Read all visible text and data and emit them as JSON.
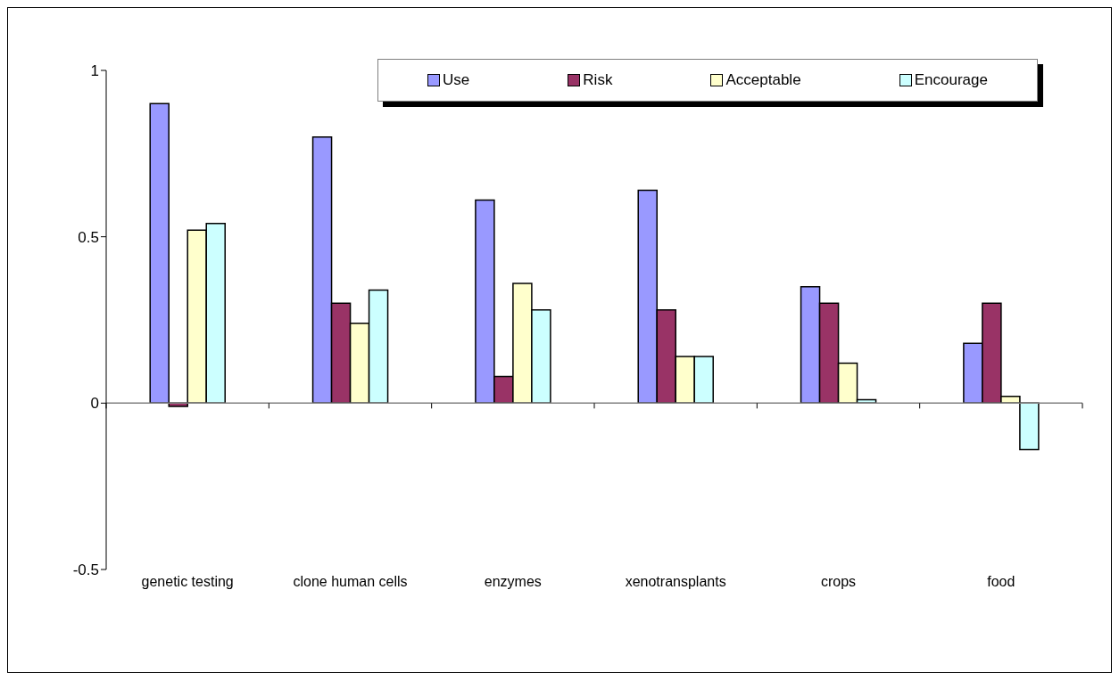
{
  "chart_data": {
    "type": "bar",
    "categories": [
      "genetic testing",
      "clone human cells",
      "enzymes",
      "xenotransplants",
      "crops",
      "food"
    ],
    "series": [
      {
        "name": "Use",
        "color": "#9999ff",
        "values": [
          0.9,
          0.8,
          0.61,
          0.64,
          0.35,
          0.18
        ]
      },
      {
        "name": "Risk",
        "color": "#993366",
        "values": [
          -0.01,
          0.3,
          0.08,
          0.28,
          0.3,
          0.3
        ]
      },
      {
        "name": "Acceptable",
        "color": "#ffffcc",
        "values": [
          0.52,
          0.24,
          0.36,
          0.14,
          0.12,
          0.02
        ]
      },
      {
        "name": "Encourage",
        "color": "#ccffff",
        "values": [
          0.54,
          0.34,
          0.28,
          0.14,
          0.01,
          -0.14
        ]
      }
    ],
    "ref_lines": [
      {
        "axis": "y",
        "value": 0,
        "color": "#808080"
      }
    ],
    "ylim": [
      -0.5,
      1
    ],
    "yticks": [
      -0.5,
      0,
      0.5,
      1
    ],
    "grid": false,
    "legend": "top right"
  }
}
